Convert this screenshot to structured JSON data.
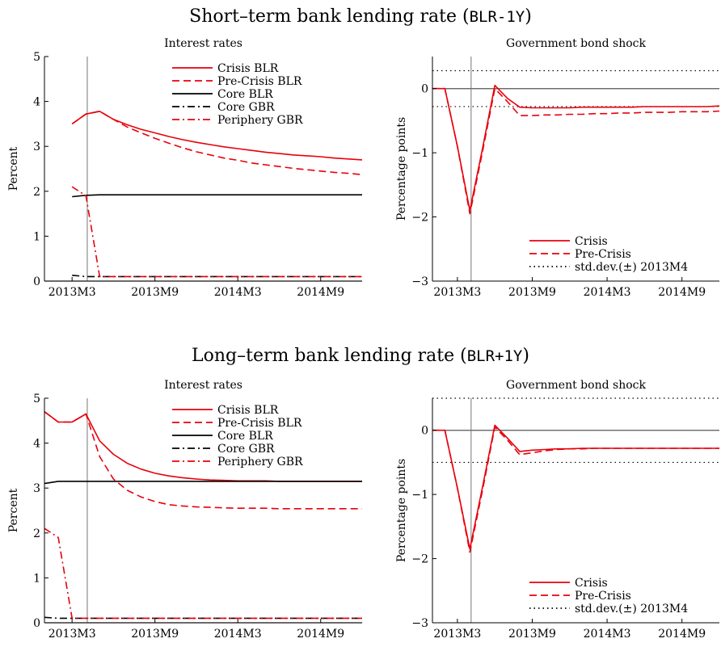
{
  "sections": [
    {
      "title_prefix": "Short–term bank lending rate (",
      "title_code": "BLR-1Y",
      "title_suffix": ")"
    },
    {
      "title_prefix": "Long–term bank lending rate (",
      "title_code": "BLR+1Y",
      "title_suffix": ")"
    }
  ],
  "chart_data": [
    {
      "type": "line",
      "title": "Interest rates",
      "ylabel": "Percent",
      "xlabel": "",
      "x_ticks": [
        "2013M3",
        "2013M9",
        "2014M3",
        "2014M9"
      ],
      "x": [
        3,
        4,
        5,
        6,
        7,
        8,
        9,
        10,
        11,
        12,
        13,
        14,
        15,
        16,
        17,
        18,
        19,
        20,
        21,
        22,
        23,
        24
      ],
      "xlim": [
        1,
        24
      ],
      "ylim": [
        0,
        5
      ],
      "y_ticks": [
        0,
        1,
        2,
        3,
        4,
        5
      ],
      "vline_x": 4.1,
      "legend_position": "top-right",
      "series": [
        {
          "name": "Crisis BLR",
          "color": "#e8000b",
          "dash": "solid",
          "values": [
            3.5,
            3.72,
            3.78,
            3.6,
            3.48,
            3.38,
            3.3,
            3.22,
            3.15,
            3.09,
            3.04,
            2.99,
            2.95,
            2.91,
            2.87,
            2.84,
            2.81,
            2.79,
            2.77,
            2.74,
            2.72,
            2.7
          ]
        },
        {
          "name": "Pre-Crisis BLR",
          "color": "#e8000b",
          "dash": "dashed",
          "values": [
            3.5,
            3.72,
            3.78,
            3.6,
            3.43,
            3.3,
            3.18,
            3.07,
            2.97,
            2.88,
            2.81,
            2.74,
            2.69,
            2.63,
            2.59,
            2.55,
            2.51,
            2.48,
            2.45,
            2.42,
            2.4,
            2.37
          ]
        },
        {
          "name": "Core BLR",
          "color": "#000000",
          "dash": "solid",
          "values": [
            1.88,
            1.91,
            1.92,
            1.92,
            1.92,
            1.92,
            1.92,
            1.92,
            1.92,
            1.92,
            1.92,
            1.92,
            1.92,
            1.92,
            1.92,
            1.92,
            1.92,
            1.92,
            1.92,
            1.92,
            1.92,
            1.92
          ]
        },
        {
          "name": "Core GBR",
          "color": "#000000",
          "dash": "dashdot",
          "values": [
            0.13,
            0.1,
            0.1,
            0.1,
            0.1,
            0.1,
            0.1,
            0.1,
            0.1,
            0.1,
            0.1,
            0.1,
            0.1,
            0.1,
            0.1,
            0.1,
            0.1,
            0.1,
            0.1,
            0.1,
            0.1,
            0.1
          ]
        },
        {
          "name": "Periphery GBR",
          "color": "#e8000b",
          "dash": "dashdot",
          "values": [
            2.1,
            1.9,
            0.1,
            0.1,
            0.1,
            0.1,
            0.1,
            0.1,
            0.1,
            0.1,
            0.1,
            0.1,
            0.1,
            0.1,
            0.1,
            0.1,
            0.1,
            0.1,
            0.1,
            0.1,
            0.1,
            0.1
          ]
        }
      ]
    },
    {
      "type": "line",
      "title": "Government bond shock",
      "ylabel": "Percentage points",
      "xlabel": "",
      "x_ticks": [
        "2013M3",
        "2013M9",
        "2014M3",
        "2014M9"
      ],
      "x": [
        1,
        2,
        3,
        4,
        5,
        6,
        7,
        8,
        9,
        10,
        11,
        12,
        13,
        14,
        15,
        16,
        17,
        18,
        19,
        20,
        21,
        22,
        23,
        24
      ],
      "xlim": [
        1,
        24
      ],
      "ylim": [
        -3,
        0.5
      ],
      "y_ticks": [
        -3,
        -2,
        -1,
        0
      ],
      "vline_x": 4.1,
      "hline_y": 0,
      "legend_position": "bottom-right",
      "series": [
        {
          "name": "Crisis",
          "color": "#e8000b",
          "dash": "solid",
          "values": [
            0,
            0,
            -0.9,
            -1.9,
            -0.95,
            0.05,
            -0.15,
            -0.29,
            -0.3,
            -0.3,
            -0.3,
            -0.3,
            -0.29,
            -0.29,
            -0.29,
            -0.29,
            -0.29,
            -0.28,
            -0.28,
            -0.28,
            -0.28,
            -0.28,
            -0.28,
            -0.27
          ]
        },
        {
          "name": "Pre-Crisis",
          "color": "#e8000b",
          "dash": "dashed",
          "values": [
            0,
            0,
            -0.9,
            -1.95,
            -1.0,
            0.0,
            -0.2,
            -0.42,
            -0.42,
            -0.41,
            -0.41,
            -0.4,
            -0.4,
            -0.39,
            -0.39,
            -0.38,
            -0.38,
            -0.37,
            -0.37,
            -0.37,
            -0.36,
            -0.36,
            -0.36,
            -0.35
          ]
        },
        {
          "name": "std.dev.(±) 2013M4",
          "color": "#000000",
          "dash": "dotted",
          "band": [
            -0.28,
            0.28
          ]
        }
      ]
    },
    {
      "type": "line",
      "title": "Interest rates",
      "ylabel": "Percent",
      "xlabel": "",
      "x_ticks": [
        "2013M3",
        "2013M9",
        "2014M3",
        "2014M9"
      ],
      "x": [
        1,
        2,
        3,
        4,
        5,
        6,
        7,
        8,
        9,
        10,
        11,
        12,
        13,
        14,
        15,
        16,
        17,
        18,
        19,
        20,
        21,
        22,
        23,
        24
      ],
      "xlim": [
        1,
        24
      ],
      "ylim": [
        0,
        5
      ],
      "y_ticks": [
        0,
        1,
        2,
        3,
        4,
        5
      ],
      "vline_x": 4.1,
      "legend_position": "top-right",
      "series": [
        {
          "name": "Crisis BLR",
          "color": "#e8000b",
          "dash": "solid",
          "values": [
            4.7,
            4.47,
            4.47,
            4.65,
            4.05,
            3.75,
            3.55,
            3.42,
            3.33,
            3.27,
            3.23,
            3.2,
            3.18,
            3.17,
            3.16,
            3.16,
            3.16,
            3.15,
            3.15,
            3.15,
            3.15,
            3.15,
            3.15,
            3.15
          ]
        },
        {
          "name": "Pre-Crisis BLR",
          "color": "#e8000b",
          "dash": "dashed",
          "values": [
            4.7,
            4.47,
            4.47,
            4.65,
            3.7,
            3.2,
            2.95,
            2.8,
            2.7,
            2.63,
            2.6,
            2.58,
            2.57,
            2.56,
            2.55,
            2.55,
            2.55,
            2.54,
            2.54,
            2.54,
            2.54,
            2.54,
            2.54,
            2.54
          ]
        },
        {
          "name": "Core BLR",
          "color": "#000000",
          "dash": "solid",
          "values": [
            3.1,
            3.15,
            3.15,
            3.15,
            3.15,
            3.15,
            3.15,
            3.15,
            3.15,
            3.15,
            3.15,
            3.15,
            3.15,
            3.15,
            3.15,
            3.15,
            3.15,
            3.15,
            3.15,
            3.15,
            3.15,
            3.15,
            3.15,
            3.15
          ]
        },
        {
          "name": "Core GBR",
          "color": "#000000",
          "dash": "dashdot",
          "values": [
            0.12,
            0.1,
            0.1,
            0.1,
            0.1,
            0.1,
            0.1,
            0.1,
            0.1,
            0.1,
            0.1,
            0.1,
            0.1,
            0.1,
            0.1,
            0.1,
            0.1,
            0.1,
            0.1,
            0.1,
            0.1,
            0.1,
            0.1,
            0.1
          ]
        },
        {
          "name": "Periphery GBR",
          "color": "#e8000b",
          "dash": "dashdot",
          "values": [
            2.1,
            1.9,
            0.1,
            0.1,
            0.1,
            0.1,
            0.1,
            0.1,
            0.1,
            0.1,
            0.1,
            0.1,
            0.1,
            0.1,
            0.1,
            0.1,
            0.1,
            0.1,
            0.1,
            0.1,
            0.1,
            0.1,
            0.1,
            0.1
          ]
        }
      ]
    },
    {
      "type": "line",
      "title": "Government bond shock",
      "ylabel": "Percentage points",
      "xlabel": "",
      "x_ticks": [
        "2013M3",
        "2013M9",
        "2014M3",
        "2014M9"
      ],
      "x": [
        1,
        2,
        3,
        4,
        5,
        6,
        7,
        8,
        9,
        10,
        11,
        12,
        13,
        14,
        15,
        16,
        17,
        18,
        19,
        20,
        21,
        22,
        23,
        24
      ],
      "xlim": [
        1,
        24
      ],
      "ylim": [
        -3,
        0.5
      ],
      "y_ticks": [
        -3,
        -2,
        -1,
        0
      ],
      "vline_x": 4.1,
      "hline_y": 0,
      "legend_position": "bottom-right",
      "series": [
        {
          "name": "Crisis",
          "color": "#e8000b",
          "dash": "solid",
          "values": [
            0,
            0,
            -0.9,
            -1.85,
            -0.9,
            0.08,
            -0.12,
            -0.33,
            -0.31,
            -0.3,
            -0.29,
            -0.29,
            -0.28,
            -0.28,
            -0.28,
            -0.28,
            -0.28,
            -0.28,
            -0.28,
            -0.28,
            -0.28,
            -0.28,
            -0.28,
            -0.28
          ]
        },
        {
          "name": "Pre-Crisis",
          "color": "#e8000b",
          "dash": "dashed",
          "values": [
            0,
            0,
            -0.9,
            -1.9,
            -0.95,
            0.05,
            -0.15,
            -0.38,
            -0.35,
            -0.32,
            -0.3,
            -0.29,
            -0.29,
            -0.28,
            -0.28,
            -0.28,
            -0.28,
            -0.28,
            -0.28,
            -0.28,
            -0.28,
            -0.28,
            -0.28,
            -0.28
          ]
        },
        {
          "name": "std.dev.(±) 2013M4",
          "color": "#000000",
          "dash": "dotted",
          "band": [
            -0.5,
            0.5
          ]
        }
      ]
    }
  ]
}
